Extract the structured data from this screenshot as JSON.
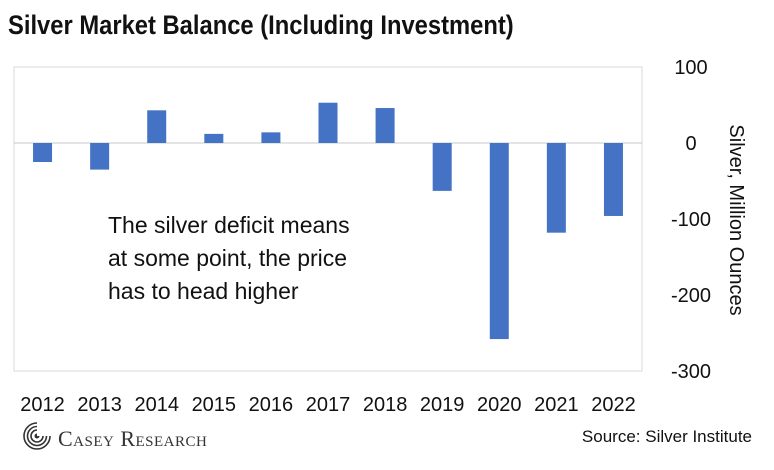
{
  "header": {
    "title": "Silver Market Balance (Including Investment)"
  },
  "annotation": {
    "lines": [
      "The silver deficit means",
      "at some point, the price",
      "has to head higher"
    ]
  },
  "footer": {
    "logo_text": "Casey Research",
    "source": "Source: Silver Institute"
  },
  "colors": {
    "bar": "#4472C4",
    "border": "#d9d9d9",
    "text": "#111111"
  },
  "chart_data": {
    "type": "bar",
    "title": "Silver Market Balance (Including Investment)",
    "categories": [
      "2012",
      "2013",
      "2014",
      "2015",
      "2016",
      "2017",
      "2018",
      "2019",
      "2020",
      "2021",
      "2022"
    ],
    "values": [
      -25,
      -35,
      43,
      12,
      14,
      53,
      46,
      -63,
      -258,
      -118,
      -96
    ],
    "ylabel": "Silver, Million Ounces",
    "ylim": [
      -300,
      100
    ],
    "yticks": [
      100,
      0,
      -100,
      -200,
      -300
    ],
    "ytick_labels": [
      "100",
      "0",
      "-100",
      "-200",
      "-300"
    ],
    "yaxis_side": "right",
    "grid": false,
    "legend": "none"
  }
}
